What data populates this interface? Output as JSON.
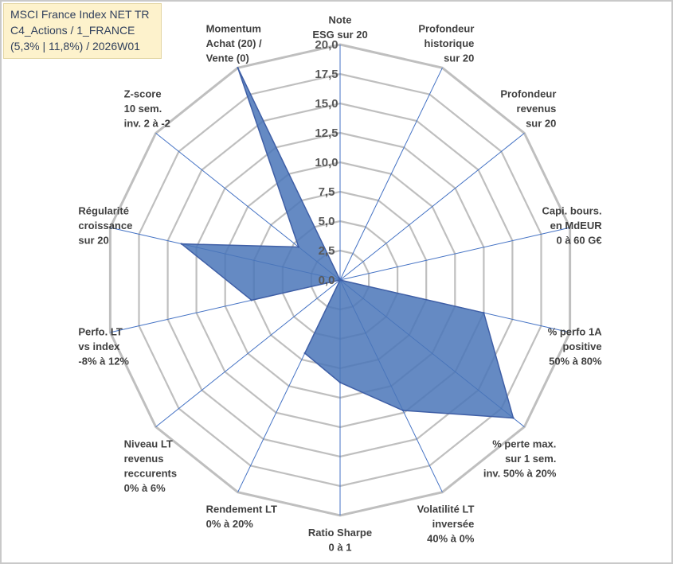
{
  "chart_data": {
    "type": "radar",
    "title_lines": [
      "MSCI France Index NET TR",
      "C4_Actions / 1_FRANCE",
      "(5,3% | 11,8%) / 2026W01"
    ],
    "axes": [
      {
        "lines": [
          "Note",
          "ESG sur 20"
        ]
      },
      {
        "lines": [
          "Profondeur",
          "historique",
          "sur 20"
        ]
      },
      {
        "lines": [
          "Profondeur",
          "revenus",
          "sur 20"
        ]
      },
      {
        "lines": [
          "Capi. bours.",
          "en MdEUR",
          "0 à 60 G€"
        ]
      },
      {
        "lines": [
          "% perfo 1A",
          "positive",
          "50% à 80%"
        ]
      },
      {
        "lines": [
          "% perte max.",
          "sur 1 sem.",
          "inv. 50% à 20%"
        ]
      },
      {
        "lines": [
          "Volatilité LT",
          "inversée",
          "40% à 0%"
        ]
      },
      {
        "lines": [
          "Ratio Sharpe",
          "0 à 1"
        ]
      },
      {
        "lines": [
          "Rendement LT",
          "0% à 20%"
        ]
      },
      {
        "lines": [
          "Niveau LT",
          "revenus",
          "reccurents",
          "0% à 6%"
        ]
      },
      {
        "lines": [
          "Perfo. LT",
          "vs index",
          "-8% à 12%"
        ]
      },
      {
        "lines": [
          "Régularité",
          "croissance",
          "sur 20"
        ]
      },
      {
        "lines": [
          "Z-score",
          "10 sem.",
          "inv. 2 à -2"
        ]
      },
      {
        "lines": [
          "Momentum",
          "Achat (20) /",
          "Vente (0)"
        ]
      }
    ],
    "series": [
      {
        "name": "MSCI France Index NET TR",
        "values": [
          0,
          0,
          0,
          0,
          12.5,
          18.8,
          12.3,
          8.7,
          6.9,
          0,
          7.7,
          13.8,
          4.5,
          20.0
        ]
      }
    ],
    "r_ticks": [
      "0,0",
      "2,5",
      "5,0",
      "7,5",
      "10,0",
      "12,5",
      "15,0",
      "17,5",
      "20,0"
    ],
    "r_range": [
      0,
      20
    ],
    "colors": {
      "fill": "#4a76b8",
      "stroke": "#3f5fa6",
      "grid": "#bfbfbf",
      "spoke": "#4472c4"
    }
  }
}
